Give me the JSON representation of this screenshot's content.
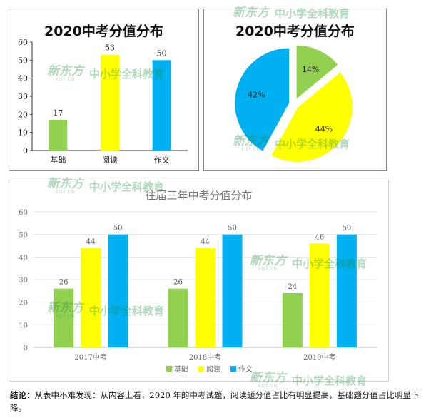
{
  "chart_data": [
    {
      "type": "bar",
      "title": "2020中考分值分布",
      "categories": [
        "基础",
        "阅读",
        "作文"
      ],
      "values": [
        17,
        53,
        50
      ],
      "colors": [
        "#92d050",
        "#ffff00",
        "#00b0f0"
      ],
      "ylim": [
        0,
        60
      ],
      "yticks": [
        0,
        10,
        20,
        30,
        40,
        50,
        60
      ],
      "grid": false,
      "xlabel": "",
      "ylabel": ""
    },
    {
      "type": "pie",
      "title": "2020中考分值分布",
      "slices": [
        {
          "label": "14%",
          "value": 14,
          "color": "#92d050"
        },
        {
          "label": "44%",
          "value": 44,
          "color": "#ffff00"
        },
        {
          "label": "42%",
          "value": 42,
          "color": "#00b0f0"
        }
      ]
    },
    {
      "type": "bar",
      "title": "往届三年中考分值分布",
      "categories": [
        "2017中考",
        "2018中考",
        "2019中考"
      ],
      "series": [
        {
          "name": "基础",
          "values": [
            26,
            26,
            24
          ],
          "color": "#92d050"
        },
        {
          "name": "阅读",
          "values": [
            44,
            44,
            46
          ],
          "color": "#ffff00"
        },
        {
          "name": "作文",
          "values": [
            50,
            50,
            50
          ],
          "color": "#00b0f0"
        }
      ],
      "ylim": [
        0,
        60
      ],
      "yticks": [
        0,
        10,
        20,
        30,
        40,
        50,
        60
      ],
      "grid": true,
      "legend": "bottom"
    }
  ],
  "watermark": {
    "logo": "新东方",
    "logo_sub": "XDF.CN",
    "text": "中小学全科教育"
  },
  "conclusion": {
    "label": "结论",
    "text": "：从表中不难发现：从内容上看，2020 年的中考试题，阅读题分值占比有明显提高，基础题分值占比明显下降。"
  }
}
